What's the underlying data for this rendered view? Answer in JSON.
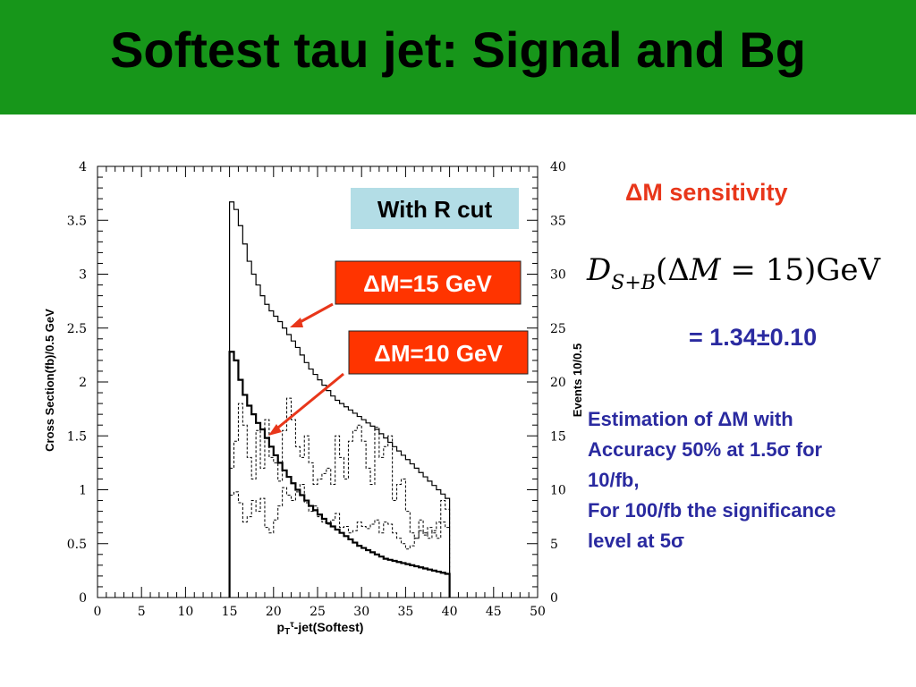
{
  "slide": {
    "title": "Softest tau jet: Signal and Bg"
  },
  "sensitivity": {
    "title": "ΔM sensitivity",
    "formula_main": "D",
    "formula_sub": "S+B",
    "formula_open": "(Δ",
    "formula_var": "M",
    "formula_rest": " = 15)GeV",
    "result": "= 1.34±0.10"
  },
  "estimation": {
    "lines": [
      "Estimation of ΔM with",
      "Accuracy 50% at 1.5σ for",
      "10/fb,",
      "For 100/fb the significance",
      "level at  5σ"
    ]
  },
  "colors": {
    "banner": "#17961a",
    "accent_red": "#e8361a",
    "text_blue": "#2a2aa0",
    "box_cyan": "#b3dde6"
  },
  "chart_data": {
    "type": "histogram",
    "xlabel": "p_T^τ-jet(Softest)",
    "ylabel": "Cross Section(fb)/0.5 GeV",
    "y2label": "Events 10/0.5",
    "xlim": [
      0,
      50
    ],
    "ylim": [
      0,
      4
    ],
    "y2lim": [
      0,
      40
    ],
    "xticks": [
      "0",
      "5",
      "10",
      "15",
      "20",
      "25",
      "30",
      "35",
      "40",
      "45",
      "50"
    ],
    "yticks": [
      "0",
      "0.5",
      "1",
      "1.5",
      "2",
      "2.5",
      "3",
      "3.5",
      "4"
    ],
    "y2ticks": [
      "0",
      "5",
      "10",
      "15",
      "20",
      "25",
      "30",
      "35",
      "40"
    ],
    "bin_width": 0.5,
    "bin_start": 15,
    "annotation_box": "With R cut",
    "labels": {
      "dm15": "ΔM=15 GeV",
      "dm10": "ΔM=10 GeV"
    },
    "series": [
      {
        "style": "solid-thin",
        "values": [
          3.67,
          3.6,
          3.45,
          3.28,
          3.12,
          3.0,
          2.9,
          2.8,
          2.72,
          2.66,
          2.61,
          2.56,
          2.5,
          2.44,
          2.38,
          2.32,
          2.25,
          2.18,
          2.12,
          2.07,
          2.02,
          1.97,
          1.92,
          1.87,
          1.83,
          1.8,
          1.77,
          1.74,
          1.71,
          1.68,
          1.65,
          1.62,
          1.59,
          1.56,
          1.52,
          1.48,
          1.44,
          1.4,
          1.36,
          1.32,
          1.28,
          1.24,
          1.2,
          1.16,
          1.12,
          1.08,
          1.04,
          1.0,
          0.96,
          0.92
        ]
      },
      {
        "style": "solid-thick",
        "values": [
          2.28,
          2.2,
          2.02,
          1.88,
          1.78,
          1.7,
          1.62,
          1.56,
          1.48,
          1.4,
          1.32,
          1.25,
          1.18,
          1.12,
          1.06,
          1.0,
          0.95,
          0.9,
          0.85,
          0.81,
          0.77,
          0.73,
          0.69,
          0.66,
          0.63,
          0.6,
          0.57,
          0.54,
          0.51,
          0.48,
          0.46,
          0.44,
          0.42,
          0.4,
          0.38,
          0.36,
          0.35,
          0.34,
          0.33,
          0.32,
          0.31,
          0.3,
          0.29,
          0.28,
          0.27,
          0.26,
          0.25,
          0.24,
          0.23,
          0.22
        ]
      },
      {
        "style": "dashed-signal",
        "values": [
          1.2,
          1.45,
          1.8,
          1.6,
          1.3,
          1.1,
          1.55,
          1.2,
          1.65,
          1.3,
          1.25,
          1.08,
          1.55,
          1.85,
          1.65,
          1.4,
          1.3,
          1.5,
          1.25,
          1.05,
          1.1,
          1.15,
          1.2,
          1.05,
          1.5,
          1.3,
          1.1,
          1.45,
          1.55,
          1.6,
          1.45,
          1.2,
          1.05,
          1.58,
          1.3,
          1.4,
          1.5,
          0.9,
          1.05,
          1.1,
          0.8,
          0.6,
          0.55,
          0.72,
          0.6,
          0.55,
          0.62,
          0.7,
          0.9,
          0.82
        ]
      },
      {
        "style": "dashed-background",
        "values": [
          0.95,
          0.98,
          0.88,
          0.7,
          0.75,
          0.9,
          0.8,
          0.92,
          0.65,
          0.6,
          0.72,
          0.85,
          1.02,
          0.95,
          0.9,
          0.98,
          1.05,
          0.88,
          0.8,
          0.85,
          0.75,
          0.7,
          0.68,
          0.72,
          0.78,
          0.65,
          0.66,
          0.6,
          0.62,
          0.7,
          0.66,
          0.64,
          0.68,
          0.72,
          0.6,
          0.7,
          0.68,
          0.6,
          0.55,
          0.5,
          0.45,
          0.48,
          0.55,
          0.62,
          0.58,
          0.65,
          0.6,
          0.55,
          0.7,
          0.65
        ]
      }
    ]
  }
}
